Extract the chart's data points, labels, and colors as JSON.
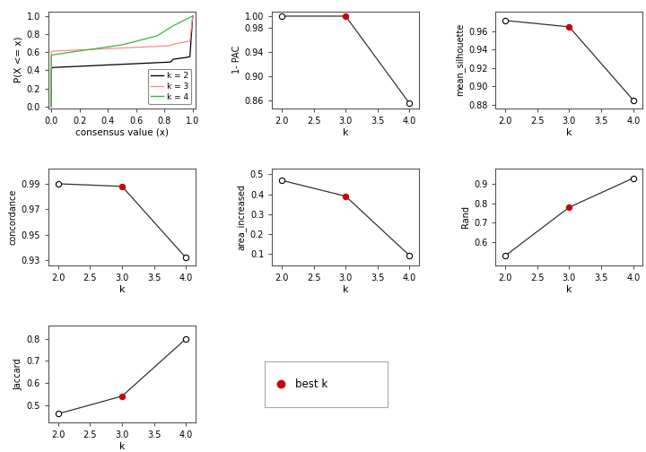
{
  "k_vals": [
    2,
    3,
    4
  ],
  "pac_vals": [
    1.0,
    1.0,
    0.855
  ],
  "silhouette_vals": [
    0.972,
    0.965,
    0.885
  ],
  "concordance_vals": [
    0.99,
    0.988,
    0.932
  ],
  "area_vals": [
    0.47,
    0.39,
    0.09
  ],
  "rand_vals": [
    0.53,
    0.78,
    0.93
  ],
  "jaccard_vals": [
    0.46,
    0.54,
    0.8
  ],
  "best_k": 3,
  "colors": {
    "k2": "#000000",
    "k3": "#ff8888",
    "k4": "#33bb33",
    "best": "#cc0000",
    "line": "#333333"
  }
}
